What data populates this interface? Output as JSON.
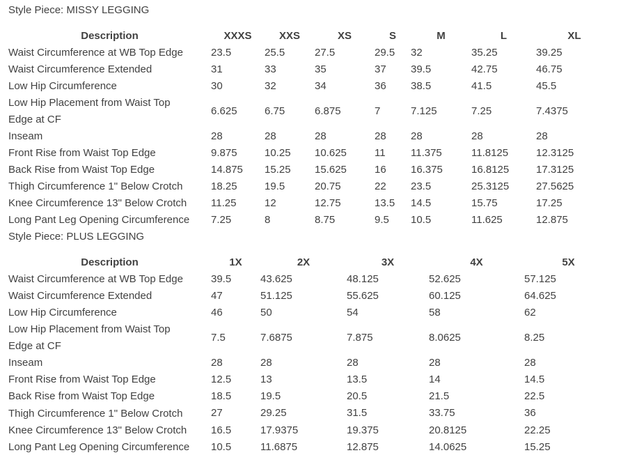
{
  "tables": [
    {
      "title": "Style Piece: MISSY LEGGING",
      "desc_header": "Description",
      "sizes": [
        "XXXS",
        "XXS",
        "XS",
        "S",
        "M",
        "L",
        "XL"
      ],
      "rows": [
        {
          "label": "Waist Circumference at WB Top Edge",
          "values": [
            "23.5",
            "25.5",
            "27.5",
            "29.5",
            "32",
            "35.25",
            "39.25"
          ]
        },
        {
          "label": "Waist Circumference Extended",
          "values": [
            "31",
            "33",
            "35",
            "37",
            "39.5",
            "42.75",
            "46.75"
          ]
        },
        {
          "label": "Low Hip Circumference",
          "values": [
            "30",
            "32",
            "34",
            "36",
            "38.5",
            "41.5",
            "45.5"
          ]
        },
        {
          "label": "Low Hip Placement from Waist Top Edge at CF",
          "values": [
            "6.625",
            "6.75",
            "6.875",
            "7",
            "7.125",
            "7.25",
            "7.4375"
          ]
        },
        {
          "label": "Inseam",
          "values": [
            "28",
            "28",
            "28",
            "28",
            "28",
            "28",
            "28"
          ]
        },
        {
          "label": "Front Rise from Waist Top Edge",
          "values": [
            "9.875",
            "10.25",
            "10.625",
            "11",
            "11.375",
            "11.8125",
            "12.3125"
          ]
        },
        {
          "label": "Back Rise from Waist Top Edge",
          "values": [
            "14.875",
            "15.25",
            "15.625",
            "16",
            "16.375",
            "16.8125",
            "17.3125"
          ]
        },
        {
          "label": "Thigh Circumference 1\" Below Crotch",
          "values": [
            "18.25",
            "19.5",
            "20.75",
            "22",
            "23.5",
            "25.3125",
            "27.5625"
          ]
        },
        {
          "label": "Knee Circumference 13\" Below Crotch",
          "values": [
            "11.25",
            "12",
            "12.75",
            "13.5",
            "14.5",
            "15.75",
            "17.25"
          ]
        },
        {
          "label": "Long Pant Leg Opening Circumference",
          "values": [
            "7.25",
            "8",
            "8.75",
            "9.5",
            "10.5",
            "11.625",
            "12.875"
          ]
        }
      ]
    },
    {
      "title": "Style Piece: PLUS LEGGING",
      "desc_header": "Description",
      "sizes": [
        "1X",
        "2X",
        "3X",
        "4X",
        "5X"
      ],
      "rows": [
        {
          "label": "Waist Circumference at WB Top Edge",
          "values": [
            "39.5",
            "43.625",
            "48.125",
            "52.625",
            "57.125"
          ]
        },
        {
          "label": "Waist Circumference Extended",
          "values": [
            "47",
            "51.125",
            "55.625",
            "60.125",
            "64.625"
          ]
        },
        {
          "label": "Low Hip Circumference",
          "values": [
            "46",
            "50",
            "54",
            "58",
            "62"
          ]
        },
        {
          "label": "Low Hip Placement from Waist Top Edge at CF",
          "values": [
            "7.5",
            "7.6875",
            "7.875",
            "8.0625",
            "8.25"
          ]
        },
        {
          "label": "Inseam",
          "values": [
            "28",
            "28",
            "28",
            "28",
            "28"
          ]
        },
        {
          "label": "Front Rise from Waist Top Edge",
          "values": [
            "12.5",
            "13",
            "13.5",
            "14",
            "14.5"
          ]
        },
        {
          "label": "Back Rise from Waist Top Edge",
          "values": [
            "18.5",
            "19.5",
            "20.5",
            "21.5",
            "22.5"
          ]
        },
        {
          "label": "Thigh Circumference 1\" Below Crotch",
          "values": [
            "27",
            "29.25",
            "31.5",
            "33.75",
            "36"
          ]
        },
        {
          "label": "Knee Circumference 13\" Below Crotch",
          "values": [
            "16.5",
            "17.9375",
            "19.375",
            "20.8125",
            "22.25"
          ]
        },
        {
          "label": "Long Pant Leg Opening Circumference",
          "values": [
            "10.5",
            "11.6875",
            "12.875",
            "14.0625",
            "15.25"
          ]
        }
      ]
    }
  ]
}
